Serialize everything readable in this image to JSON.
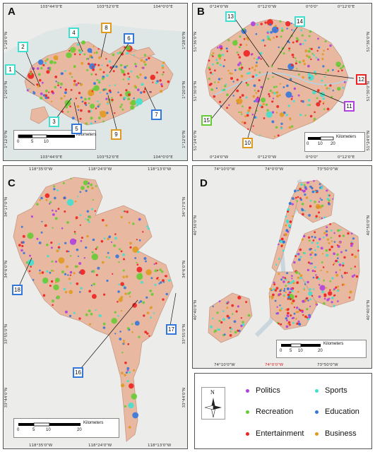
{
  "colors": {
    "politics": "#b040e0",
    "sports": "#40e0d0",
    "recreation": "#66cc33",
    "education": "#3377dd",
    "entertainment": "#ee2222",
    "business": "#e09a20",
    "land": "#e8b8a0",
    "water": "#dfe6e6"
  },
  "panels": {
    "A": {
      "letter": "A",
      "ticks_top": [
        "103°44'0\"E",
        "103°52'0\"E",
        "104°0'0\"E"
      ],
      "ticks_bottom": [
        "103°44'0\"E",
        "103°52'0\"E",
        "104°0'0\"E"
      ],
      "ticks_left": [
        "1°28'0\"N",
        "1°20'0\"N",
        "1°12'0\"N"
      ],
      "ticks_right": [
        "1°28'0\"N",
        "1°20'0\"N",
        "1°12'0\"N"
      ],
      "scale": {
        "unit": "Kilometers",
        "labels": [
          "0",
          "5",
          "10"
        ]
      },
      "callouts": [
        {
          "n": "1",
          "color": "sports"
        },
        {
          "n": "2",
          "color": "sports"
        },
        {
          "n": "3",
          "color": "sports"
        },
        {
          "n": "4",
          "color": "sports"
        },
        {
          "n": "5",
          "color": "education"
        },
        {
          "n": "6",
          "color": "education"
        },
        {
          "n": "7",
          "color": "education"
        },
        {
          "n": "8",
          "color": "business"
        },
        {
          "n": "9",
          "color": "business"
        }
      ]
    },
    "B": {
      "letter": "B",
      "ticks_top": [
        "0°24'0\"W",
        "0°12'0\"W",
        "0°0'0\"",
        "0°12'0\"E"
      ],
      "ticks_bottom": [
        "0°24'0\"W",
        "0°12'0\"W",
        "0°0'0\"",
        "0°12'0\"E"
      ],
      "ticks_left": [
        "51°36'0\"N",
        "51°30'0\"N",
        "51°24'0\"N"
      ],
      "ticks_right": [
        "51°36'0\"N",
        "51°30'0\"N",
        "51°24'0\"N"
      ],
      "scale": {
        "unit": "Kilometers",
        "labels": [
          "0",
          "10",
          "20"
        ]
      },
      "callouts": [
        {
          "n": "10",
          "color": "business"
        },
        {
          "n": "11",
          "color": "politics"
        },
        {
          "n": "12",
          "color": "entertainment"
        },
        {
          "n": "13",
          "color": "sports"
        },
        {
          "n": "14",
          "color": "sports"
        },
        {
          "n": "15",
          "color": "recreation"
        }
      ]
    },
    "C": {
      "letter": "C",
      "ticks_top": [
        "118°35'0\"W",
        "118°24'0\"W",
        "118°13'0\"W"
      ],
      "ticks_bottom": [
        "118°35'0\"W",
        "118°24'0\"W",
        "118°13'0\"W"
      ],
      "ticks_left": [
        "34°17'0\"N",
        "34°6'0\"N",
        "33°55'0\"N",
        "33°44'0\"N"
      ],
      "ticks_right": [
        "34°17'0\"N",
        "34°6'0\"N",
        "33°55'0\"N",
        "33°44'0\"N"
      ],
      "scale": {
        "unit": "Kilometers",
        "labels": [
          "0",
          "5",
          "10",
          "20"
        ]
      },
      "callouts": [
        {
          "n": "16",
          "color": "education"
        },
        {
          "n": "17",
          "color": "education"
        },
        {
          "n": "18",
          "color": "education"
        }
      ]
    },
    "D": {
      "letter": "D",
      "ticks_top": [
        "74°10'0\"W",
        "74°0'0\"W",
        "73°50'0\"W"
      ],
      "ticks_bottom": [
        "74°10'0\"W",
        "74°0'0\"W",
        "73°50'0\"W"
      ],
      "ticks_left": [
        "40°50'0\"N",
        "40°40'0\"N"
      ],
      "ticks_right": [
        "40°50'0\"N",
        "40°40'0\"N"
      ],
      "scale": {
        "unit": "Kilometers",
        "labels": [
          "0",
          "5",
          "10",
          "20"
        ]
      },
      "callouts": []
    }
  },
  "legend": {
    "items": [
      {
        "label": "Politics",
        "color": "politics"
      },
      {
        "label": "Sports",
        "color": "sports"
      },
      {
        "label": "Recreation",
        "color": "recreation"
      },
      {
        "label": "Education",
        "color": "education"
      },
      {
        "label": "Entertainment",
        "color": "entertainment"
      },
      {
        "label": "Business",
        "color": "business"
      }
    ]
  },
  "compass": {
    "label": "N"
  }
}
